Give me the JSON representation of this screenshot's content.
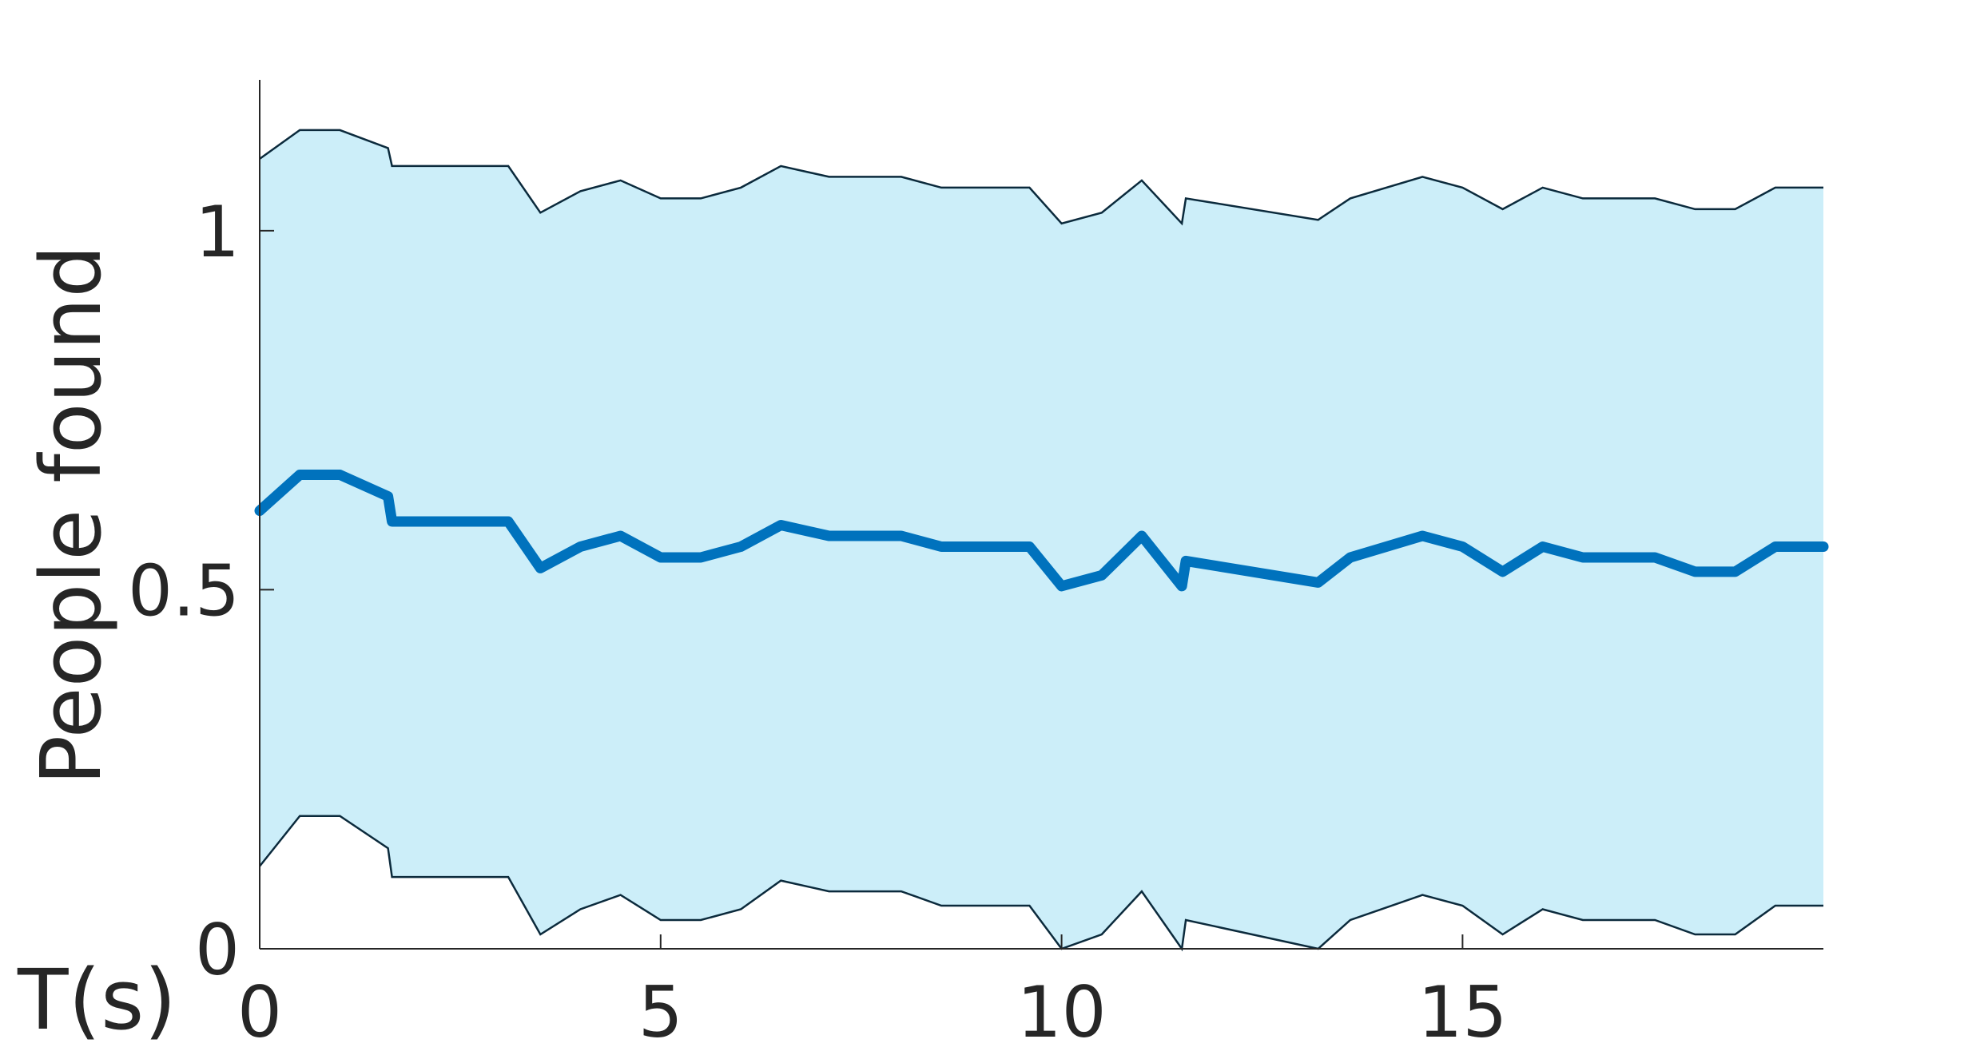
{
  "chart_data": {
    "type": "area",
    "title": "",
    "xlabel": "T(s)",
    "ylabel": "People found",
    "xlim": [
      0,
      19.5
    ],
    "ylim": [
      0,
      1.21
    ],
    "x_ticks": [
      0,
      5,
      10,
      15
    ],
    "x_tick_labels": [
      "0",
      "5",
      "10",
      "15"
    ],
    "y_ticks": [
      0,
      0.5,
      1
    ],
    "y_tick_labels": [
      "0",
      "0.5",
      "1"
    ],
    "grid": false,
    "colors": {
      "mean": "#0072bd",
      "band": "#cceef9",
      "band_edge": "#0b2a3c"
    },
    "x": [
      0,
      0.5,
      1.0,
      1.6,
      1.65,
      3.1,
      3.5,
      4.0,
      4.5,
      5.0,
      5.5,
      6.0,
      6.5,
      7.1,
      8.0,
      8.5,
      9.6,
      10.0,
      10.5,
      11.0,
      11.5,
      11.55,
      13.2,
      13.6,
      14.5,
      15.0,
      15.5,
      16.0,
      16.5,
      17.4,
      17.9,
      18.4,
      18.9,
      19.5
    ],
    "series": [
      {
        "name": "",
        "values": [
          0.61,
          0.66,
          0.66,
          0.63,
          0.595,
          0.595,
          0.53,
          0.56,
          0.575,
          0.545,
          0.545,
          0.56,
          0.59,
          0.575,
          0.575,
          0.56,
          0.56,
          0.505,
          0.52,
          0.575,
          0.505,
          0.54,
          0.51,
          0.545,
          0.575,
          0.56,
          0.525,
          0.56,
          0.545,
          0.545,
          0.525,
          0.525,
          0.56,
          0.56
        ]
      },
      {
        "name": "",
        "values": [
          1.1,
          1.14,
          1.14,
          1.115,
          1.09,
          1.09,
          1.025,
          1.055,
          1.07,
          1.045,
          1.045,
          1.06,
          1.09,
          1.075,
          1.075,
          1.06,
          1.06,
          1.01,
          1.025,
          1.07,
          1.01,
          1.045,
          1.015,
          1.045,
          1.075,
          1.06,
          1.03,
          1.06,
          1.045,
          1.045,
          1.03,
          1.03,
          1.06,
          1.06
        ]
      },
      {
        "name": "",
        "values": [
          0.115,
          0.185,
          0.185,
          0.14,
          0.1,
          0.1,
          0.02,
          0.055,
          0.075,
          0.04,
          0.04,
          0.055,
          0.095,
          0.08,
          0.08,
          0.06,
          0.06,
          0.0,
          0.02,
          0.08,
          0.0,
          0.04,
          0.0,
          0.04,
          0.075,
          0.06,
          0.02,
          0.055,
          0.04,
          0.04,
          0.02,
          0.02,
          0.06,
          0.06
        ]
      }
    ]
  }
}
